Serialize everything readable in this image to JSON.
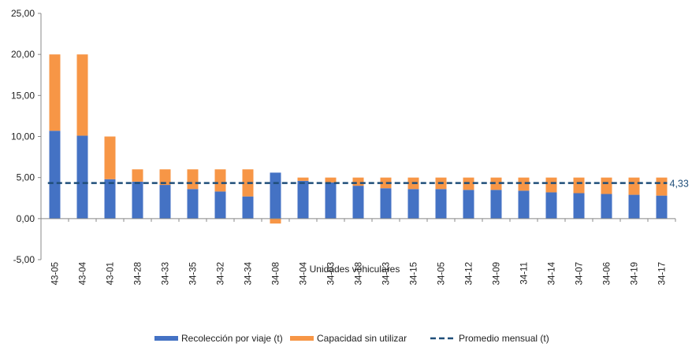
{
  "chart_data": {
    "type": "bar",
    "stacked": true,
    "xlabel": "Unidades vehiculares",
    "ylabel": "",
    "ylim": [
      -5,
      25
    ],
    "yticks": [
      -5,
      0,
      5,
      10,
      15,
      20,
      25
    ],
    "ytick_labels": [
      "-5,00",
      "0,00",
      "5,00",
      "10,00",
      "15,00",
      "20,00",
      "25,00"
    ],
    "grid": false,
    "legend_position": "bottom",
    "categories": [
      "43-05",
      "43-04",
      "43-01",
      "34-28",
      "34-33",
      "34-35",
      "34-32",
      "34-34",
      "34-08",
      "34-04",
      "34-03",
      "34-18",
      "34-13",
      "34-15",
      "34-05",
      "34-12",
      "34-09",
      "34-11",
      "34-14",
      "34-07",
      "34-06",
      "34-19",
      "34-17"
    ],
    "series": [
      {
        "name": "Recolección por viaje (t)",
        "color": "#4472c4",
        "values": [
          10.7,
          10.1,
          4.8,
          4.5,
          4.1,
          3.6,
          3.3,
          2.7,
          5.6,
          4.6,
          4.4,
          4.0,
          3.7,
          3.6,
          3.6,
          3.5,
          3.5,
          3.4,
          3.2,
          3.1,
          3.0,
          2.9,
          2.8
        ]
      },
      {
        "name": "Capacidad sin utilizar",
        "color": "#f79646",
        "values": [
          9.3,
          9.9,
          5.2,
          1.5,
          1.9,
          2.4,
          2.7,
          3.3,
          -0.6,
          0.4,
          0.6,
          1.0,
          1.3,
          1.4,
          1.4,
          1.5,
          1.5,
          1.6,
          1.8,
          1.9,
          2.0,
          2.1,
          2.2
        ]
      }
    ],
    "reference_line": {
      "name": "Promedio mensual (t)",
      "value": 4.33,
      "label": "4,33",
      "color": "#1f4e79",
      "style": "dashed"
    }
  }
}
